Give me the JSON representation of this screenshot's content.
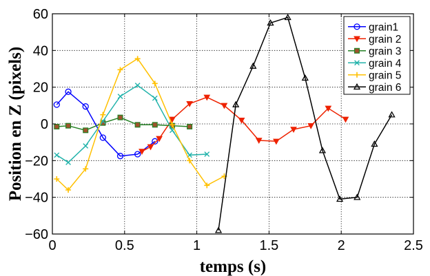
{
  "chart_data": {
    "type": "line",
    "title": "",
    "xlabel": "temps (s)",
    "ylabel": "Position en Z (pixels)",
    "xlim": [
      0,
      2.5
    ],
    "ylim": [
      -60,
      60
    ],
    "xticks": [
      0,
      0.5,
      1,
      1.5,
      2,
      2.5
    ],
    "xtick_labels": [
      "0",
      "0.5",
      "1",
      "1.5",
      "2",
      "2.5"
    ],
    "yticks": [
      -60,
      -40,
      -20,
      0,
      20,
      40,
      60
    ],
    "ytick_labels": [
      "−60",
      "−40",
      "−20",
      "0",
      "20",
      "40",
      "60"
    ],
    "grid": true,
    "legend_position": "top-right",
    "series": [
      {
        "name": "grain1",
        "color": "#0000ff",
        "marker": "circle",
        "x": [
          0.03,
          0.11,
          0.23,
          0.35,
          0.47,
          0.59,
          0.71
        ],
        "y": [
          10.5,
          17.5,
          9.5,
          -7.5,
          -17.5,
          -16.5,
          -9.5
        ]
      },
      {
        "name": "grain 2",
        "color": "#ee2200",
        "marker": "triangle-down",
        "x": [
          0.62,
          0.68,
          0.74,
          0.83,
          0.95,
          1.07,
          1.19,
          1.31,
          1.43,
          1.55,
          1.67,
          1.79,
          1.91,
          2.03
        ],
        "y": [
          -15,
          -12.5,
          -8,
          2.5,
          11,
          14.5,
          10,
          2,
          -9,
          -9.5,
          -3,
          -1,
          8.5,
          2.5
        ]
      },
      {
        "name": "grain 3",
        "color": "#238023",
        "marker": "square",
        "x": [
          0.03,
          0.11,
          0.23,
          0.35,
          0.47,
          0.59,
          0.71,
          0.83,
          0.95
        ],
        "y": [
          -1.5,
          -1,
          -3.5,
          0.5,
          3.5,
          -0.5,
          -0.5,
          -1,
          -1.5
        ]
      },
      {
        "name": "grain 4",
        "color": "#20b2aa",
        "marker": "x",
        "x": [
          0.03,
          0.11,
          0.23,
          0.35,
          0.47,
          0.59,
          0.71,
          0.83,
          0.95,
          1.07
        ],
        "y": [
          -17,
          -21,
          -12,
          1.5,
          15,
          21,
          14,
          -3.5,
          -17,
          -16.5
        ]
      },
      {
        "name": "grain 5",
        "color": "#ffc000",
        "marker": "plus",
        "x": [
          0.03,
          0.11,
          0.23,
          0.35,
          0.47,
          0.59,
          0.71,
          0.83,
          0.95,
          1.07,
          1.19
        ],
        "y": [
          -30,
          -36,
          -24.5,
          5,
          29.5,
          35.5,
          22,
          -0.5,
          -20,
          -33.5,
          -28.5
        ]
      },
      {
        "name": "grain 6",
        "color": "#000000",
        "marker": "triangle-up",
        "x": [
          1.15,
          1.27,
          1.39,
          1.51,
          1.63,
          1.75,
          1.87,
          1.99,
          2.11,
          2.23,
          2.35
        ],
        "y": [
          -58,
          10.5,
          31.5,
          55,
          58,
          25,
          -14.5,
          -41,
          -40,
          -11,
          5
        ]
      }
    ]
  }
}
